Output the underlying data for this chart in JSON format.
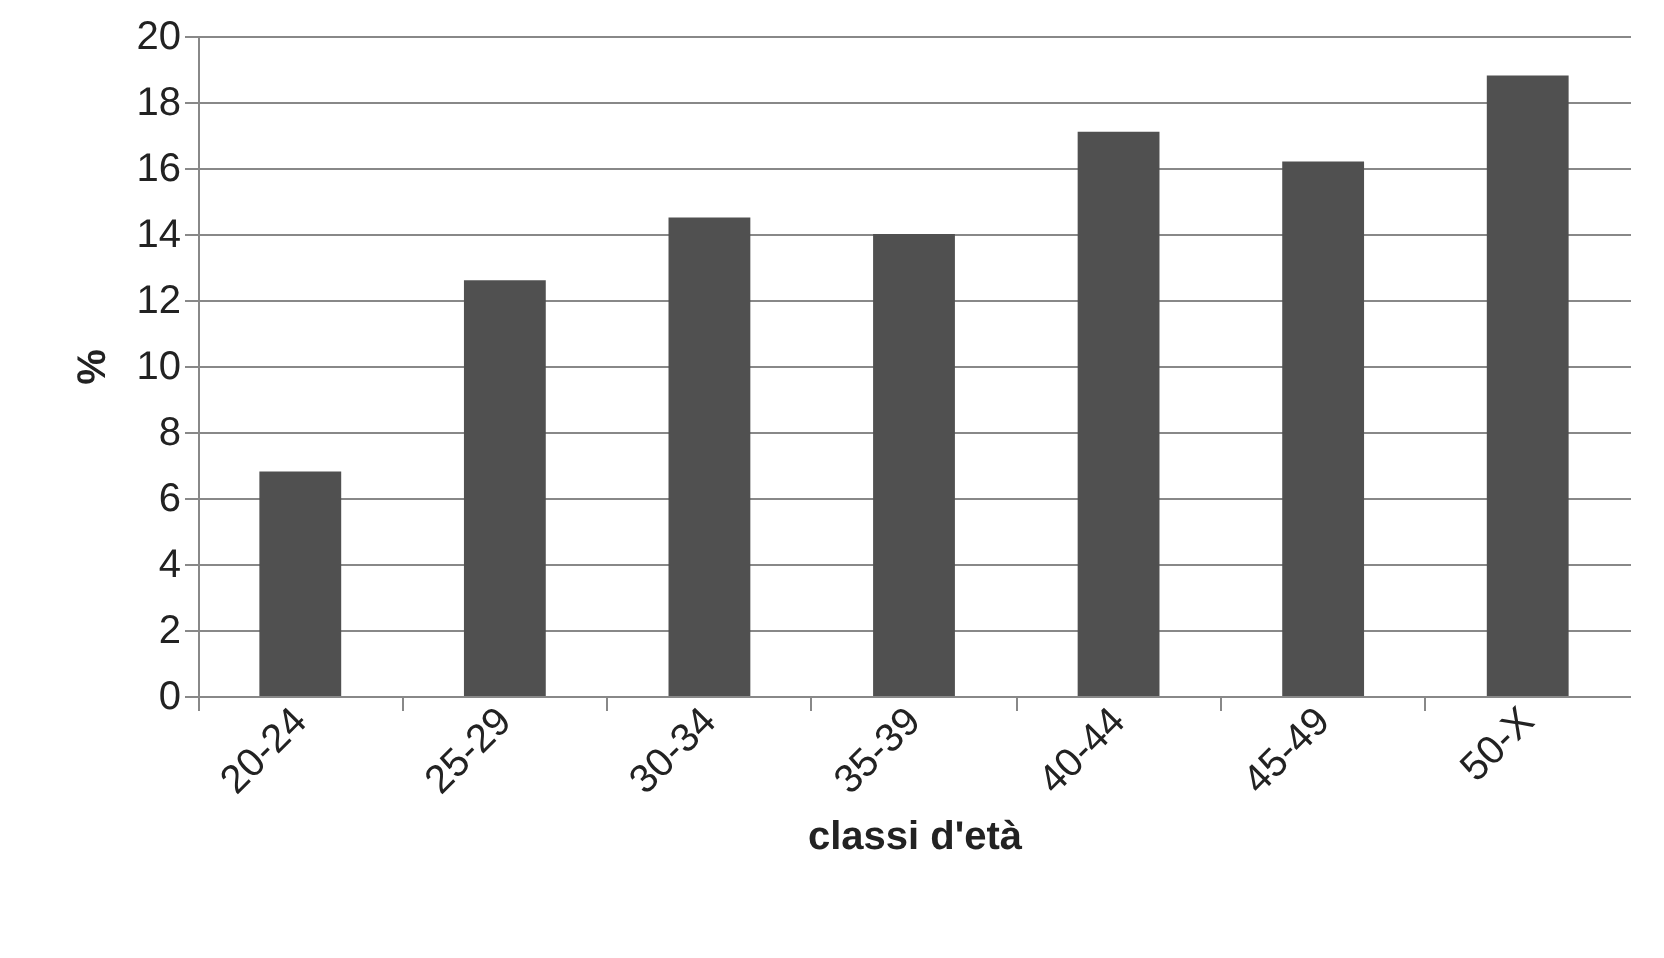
{
  "chart_data": {
    "type": "bar",
    "xlabel": "classi d'età",
    "ylabel": "%",
    "categories": [
      "20-24",
      "25-29",
      "30-34",
      "35-39",
      "40-44",
      "45-49",
      "50-X"
    ],
    "values": [
      6.8,
      12.6,
      14.5,
      14.0,
      17.1,
      16.2,
      18.8
    ],
    "color": "#505050",
    "ylim": [
      0,
      20
    ],
    "yticks": [
      0,
      2,
      4,
      6,
      8,
      10,
      12,
      14,
      16,
      18,
      20
    ],
    "grid": "y"
  }
}
